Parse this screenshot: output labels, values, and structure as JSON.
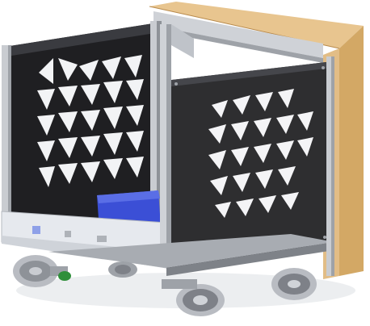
{
  "image": {
    "subject": "robot-chassis-render",
    "colors": {
      "background": "#ffffff",
      "panel_dark": "#2e2e30",
      "panel_darker": "#1c1c1e",
      "cutout": "#f4f4f6",
      "aluminum": "#c9ccd1",
      "aluminum_dark": "#8e9298",
      "wood": "#e2bd86",
      "wood_dark": "#c79a5e",
      "polycarb": "#e8ebef",
      "blue_part": "#3b4fd6",
      "wheel_metal": "#b9bcc2",
      "wheel_roller": "#7e8188",
      "accent_green": "#2f8f3a"
    }
  }
}
